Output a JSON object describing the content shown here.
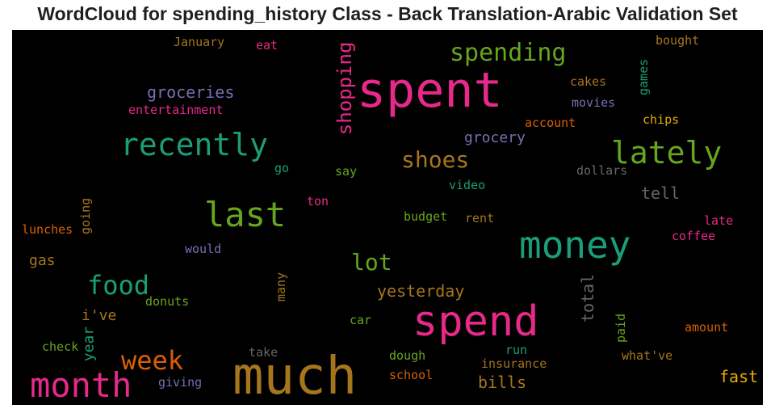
{
  "title": "WordCloud for spending_history Class - Back Translation-Arabic Validation Set",
  "chart_data": {
    "type": "wordcloud",
    "title": "WordCloud for spending_history Class - Back Translation-Arabic Validation Set",
    "background": "#000000",
    "words": [
      {
        "text": "spent",
        "color": "#e7298a"
      },
      {
        "text": "much",
        "color": "#a6761d"
      },
      {
        "text": "spend",
        "color": "#e7298a"
      },
      {
        "text": "money",
        "color": "#1b9e77"
      },
      {
        "text": "month",
        "color": "#e7298a"
      },
      {
        "text": "recently",
        "color": "#1b9e77"
      },
      {
        "text": "lately",
        "color": "#66a61e"
      },
      {
        "text": "last",
        "color": "#66a61e"
      },
      {
        "text": "spending",
        "color": "#66a61e"
      },
      {
        "text": "shopping",
        "color": "#e7298a"
      },
      {
        "text": "week",
        "color": "#d95f02"
      },
      {
        "text": "food",
        "color": "#1b9e77"
      },
      {
        "text": "lot",
        "color": "#66a61e"
      },
      {
        "text": "shoes",
        "color": "#a6761d"
      },
      {
        "text": "groceries",
        "color": "#7570b3"
      },
      {
        "text": "grocery",
        "color": "#7570b3"
      },
      {
        "text": "yesterday",
        "color": "#a6761d"
      },
      {
        "text": "bills",
        "color": "#a6761d"
      },
      {
        "text": "fast",
        "color": "#e6ab02"
      },
      {
        "text": "total",
        "color": "#666666"
      },
      {
        "text": "tell",
        "color": "#666666"
      },
      {
        "text": "gas",
        "color": "#a6761d"
      },
      {
        "text": "i've",
        "color": "#a6761d"
      },
      {
        "text": "year",
        "color": "#1b9e77"
      },
      {
        "text": "entertainment",
        "color": "#e7298a"
      },
      {
        "text": "January",
        "color": "#a6761d"
      },
      {
        "text": "eat",
        "color": "#e7298a"
      },
      {
        "text": "bought",
        "color": "#a6761d"
      },
      {
        "text": "games",
        "color": "#1b9e77"
      },
      {
        "text": "cakes",
        "color": "#a6761d"
      },
      {
        "text": "movies",
        "color": "#7570b3"
      },
      {
        "text": "chips",
        "color": "#e6ab02"
      },
      {
        "text": "account",
        "color": "#d95f02"
      },
      {
        "text": "dollars",
        "color": "#666666"
      },
      {
        "text": "go",
        "color": "#1b9e77"
      },
      {
        "text": "say",
        "color": "#66a61e"
      },
      {
        "text": "video",
        "color": "#1b9e77"
      },
      {
        "text": "ton",
        "color": "#e7298a"
      },
      {
        "text": "going",
        "color": "#a6761d"
      },
      {
        "text": "lunches",
        "color": "#d95f02"
      },
      {
        "text": "budget",
        "color": "#66a61e"
      },
      {
        "text": "rent",
        "color": "#a6761d"
      },
      {
        "text": "late",
        "color": "#e7298a"
      },
      {
        "text": "coffee",
        "color": "#e7298a"
      },
      {
        "text": "would",
        "color": "#7570b3"
      },
      {
        "text": "many",
        "color": "#a6761d"
      },
      {
        "text": "donuts",
        "color": "#66a61e"
      },
      {
        "text": "car",
        "color": "#66a61e"
      },
      {
        "text": "check",
        "color": "#66a61e"
      },
      {
        "text": "take",
        "color": "#666666"
      },
      {
        "text": "giving",
        "color": "#7570b3"
      },
      {
        "text": "dough",
        "color": "#66a61e"
      },
      {
        "text": "school",
        "color": "#d95f02"
      },
      {
        "text": "run",
        "color": "#1b9e77"
      },
      {
        "text": "insurance",
        "color": "#a6761d"
      },
      {
        "text": "paid",
        "color": "#66a61e"
      },
      {
        "text": "amount",
        "color": "#d95f02"
      },
      {
        "text": "what've",
        "color": "#a6761d"
      }
    ]
  }
}
